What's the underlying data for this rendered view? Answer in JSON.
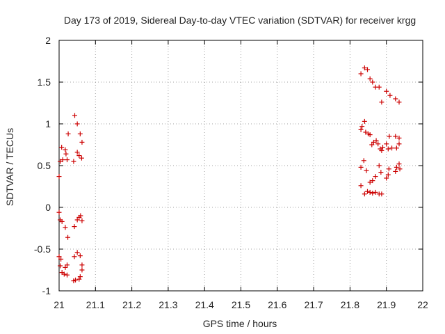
{
  "chart_data": {
    "type": "scatter",
    "title": "Day 173 of 2019, Sidereal Day-to-day VTEC variation (SDTVAR) for receiver krgg",
    "xlabel": "GPS time / hours",
    "ylabel": "SDTVAR / TECUs",
    "xlim": [
      21,
      22
    ],
    "ylim": [
      -1,
      2
    ],
    "xticks": [
      "21",
      "21.1",
      "21.2",
      "21.3",
      "21.4",
      "21.5",
      "21.6",
      "21.7",
      "21.8",
      "21.9",
      "22"
    ],
    "yticks": [
      "-1",
      "-0.5",
      "0",
      "0.5",
      "1",
      "1.5",
      "2"
    ],
    "grid": true,
    "marker": "+",
    "marker_color": "#cc0000",
    "series": [
      {
        "name": "SDTVAR",
        "points": [
          [
            21.0,
            0.37
          ],
          [
            21.003,
            0.55
          ],
          [
            21.007,
            0.72
          ],
          [
            21.01,
            0.57
          ],
          [
            21.017,
            0.69
          ],
          [
            21.019,
            0.64
          ],
          [
            21.022,
            0.57
          ],
          [
            21.025,
            0.88
          ],
          [
            21.04,
            0.55
          ],
          [
            21.043,
            1.1
          ],
          [
            21.05,
            1.0
          ],
          [
            21.05,
            0.66
          ],
          [
            21.055,
            0.62
          ],
          [
            21.058,
            0.88
          ],
          [
            21.062,
            0.59
          ],
          [
            21.063,
            0.78
          ],
          [
            21.0,
            -0.06
          ],
          [
            21.003,
            -0.15
          ],
          [
            21.008,
            -0.17
          ],
          [
            21.017,
            -0.24
          ],
          [
            21.024,
            -0.36
          ],
          [
            21.042,
            -0.23
          ],
          [
            21.05,
            -0.15
          ],
          [
            21.055,
            -0.12
          ],
          [
            21.059,
            -0.1
          ],
          [
            21.063,
            -0.16
          ],
          [
            21.0,
            -0.59
          ],
          [
            21.005,
            -0.62
          ],
          [
            21.003,
            -0.7
          ],
          [
            21.008,
            -0.78
          ],
          [
            21.017,
            -0.72
          ],
          [
            21.022,
            -0.69
          ],
          [
            21.014,
            -0.8
          ],
          [
            21.022,
            -0.81
          ],
          [
            21.04,
            -0.88
          ],
          [
            21.045,
            -0.87
          ],
          [
            21.042,
            -0.59
          ],
          [
            21.05,
            -0.54
          ],
          [
            21.055,
            -0.86
          ],
          [
            21.058,
            -0.83
          ],
          [
            21.058,
            -0.58
          ],
          [
            21.063,
            -0.69
          ],
          [
            21.063,
            -0.75
          ],
          [
            21.83,
            1.6
          ],
          [
            21.84,
            1.67
          ],
          [
            21.848,
            1.65
          ],
          [
            21.855,
            1.54
          ],
          [
            21.862,
            1.5
          ],
          [
            21.87,
            1.44
          ],
          [
            21.88,
            1.44
          ],
          [
            21.887,
            1.26
          ],
          [
            21.9,
            1.39
          ],
          [
            21.91,
            1.34
          ],
          [
            21.925,
            1.3
          ],
          [
            21.935,
            1.26
          ],
          [
            21.83,
            0.93
          ],
          [
            21.833,
            0.97
          ],
          [
            21.84,
            1.03
          ],
          [
            21.843,
            0.9
          ],
          [
            21.85,
            0.88
          ],
          [
            21.855,
            0.87
          ],
          [
            21.86,
            0.75
          ],
          [
            21.865,
            0.78
          ],
          [
            21.872,
            0.8
          ],
          [
            21.877,
            0.76
          ],
          [
            21.883,
            0.7
          ],
          [
            21.887,
            0.68
          ],
          [
            21.89,
            0.72
          ],
          [
            21.9,
            0.76
          ],
          [
            21.905,
            0.7
          ],
          [
            21.908,
            0.85
          ],
          [
            21.915,
            0.71
          ],
          [
            21.925,
            0.85
          ],
          [
            21.928,
            0.71
          ],
          [
            21.935,
            0.83
          ],
          [
            21.935,
            0.76
          ],
          [
            21.83,
            0.48
          ],
          [
            21.838,
            0.56
          ],
          [
            21.845,
            0.44
          ],
          [
            21.855,
            0.3
          ],
          [
            21.862,
            0.32
          ],
          [
            21.87,
            0.37
          ],
          [
            21.88,
            0.5
          ],
          [
            21.885,
            0.42
          ],
          [
            21.9,
            0.35
          ],
          [
            21.905,
            0.39
          ],
          [
            21.907,
            0.46
          ],
          [
            21.925,
            0.43
          ],
          [
            21.928,
            0.48
          ],
          [
            21.935,
            0.52
          ],
          [
            21.937,
            0.46
          ],
          [
            21.83,
            0.26
          ],
          [
            21.84,
            0.16
          ],
          [
            21.848,
            0.19
          ],
          [
            21.855,
            0.18
          ],
          [
            21.862,
            0.17
          ],
          [
            21.87,
            0.18
          ],
          [
            21.88,
            0.16
          ],
          [
            21.887,
            0.16
          ]
        ]
      }
    ]
  }
}
